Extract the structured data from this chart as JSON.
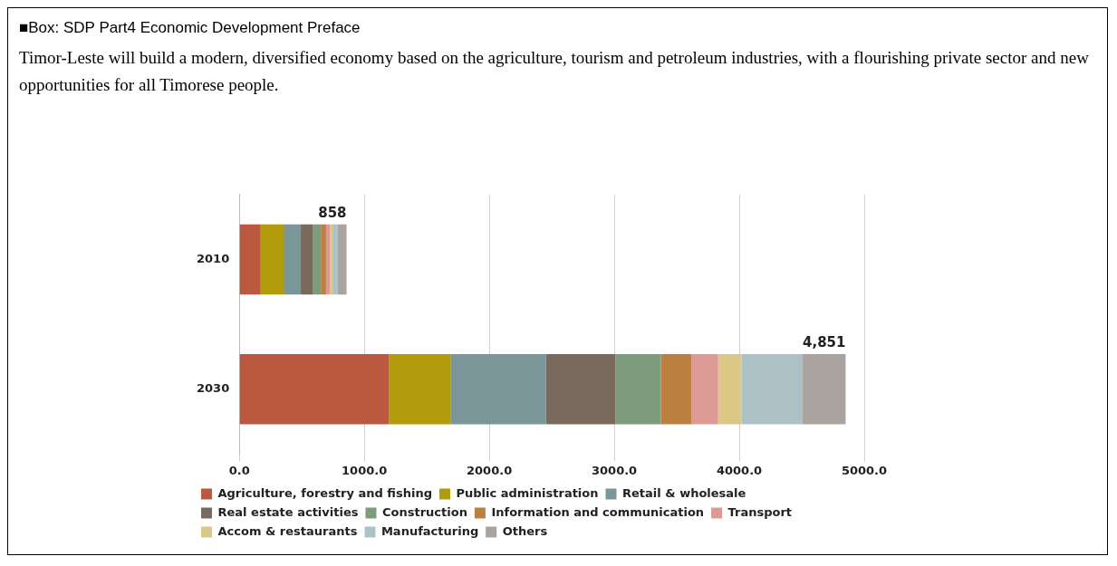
{
  "chart_data": {
    "type": "bar",
    "orientation": "horizontal",
    "stacked": true,
    "title": "■Box: SDP Part4 Economic Development Preface",
    "subtitle": "Timor-Leste will build a modern, diversified economy based on the agriculture, tourism and petroleum industries, with a flourishing private sector and new opportunities for all Timorese people.",
    "categories": [
      "2010",
      "2030"
    ],
    "series": [
      {
        "name": "Agriculture, forestry and fishing",
        "color": "#bb5840",
        "values": [
          171,
          1199
        ]
      },
      {
        "name": "Public administration",
        "color": "#b39c0b",
        "values": [
          183,
          490
        ]
      },
      {
        "name": "Retail & wholesale",
        "color": "#7a9699",
        "values": [
          138,
          765
        ]
      },
      {
        "name": "Real estate activities",
        "color": "#7a6a5e",
        "values": [
          94,
          556
        ]
      },
      {
        "name": "Construction",
        "color": "#7d9c7b",
        "values": [
          66,
          364
        ]
      },
      {
        "name": "Information and communication",
        "color": "#bb8040",
        "values": [
          42,
          245
        ]
      },
      {
        "name": "Transport",
        "color": "#dd9a94",
        "values": [
          33,
          212
        ]
      },
      {
        "name": "Accom & restaurants",
        "color": "#dbc786",
        "values": [
          19,
          186
        ]
      },
      {
        "name": "Manufacturing",
        "color": "#adc2c6",
        "values": [
          42,
          490
        ]
      },
      {
        "name": "Others",
        "color": "#aba39e",
        "values": [
          70,
          344
        ]
      }
    ],
    "totals": [
      "858",
      "4,851"
    ],
    "xlim": [
      0,
      5000
    ],
    "xticks": [
      {
        "value": 0,
        "label": "0.0"
      },
      {
        "value": 1000,
        "label": "1000.0"
      },
      {
        "value": 2000,
        "label": "2000.0"
      },
      {
        "value": 3000,
        "label": "3000.0"
      },
      {
        "value": 4000,
        "label": "4000.0"
      },
      {
        "value": 5000,
        "label": "5000.0"
      }
    ],
    "grid": "x",
    "legend": "bottom"
  }
}
